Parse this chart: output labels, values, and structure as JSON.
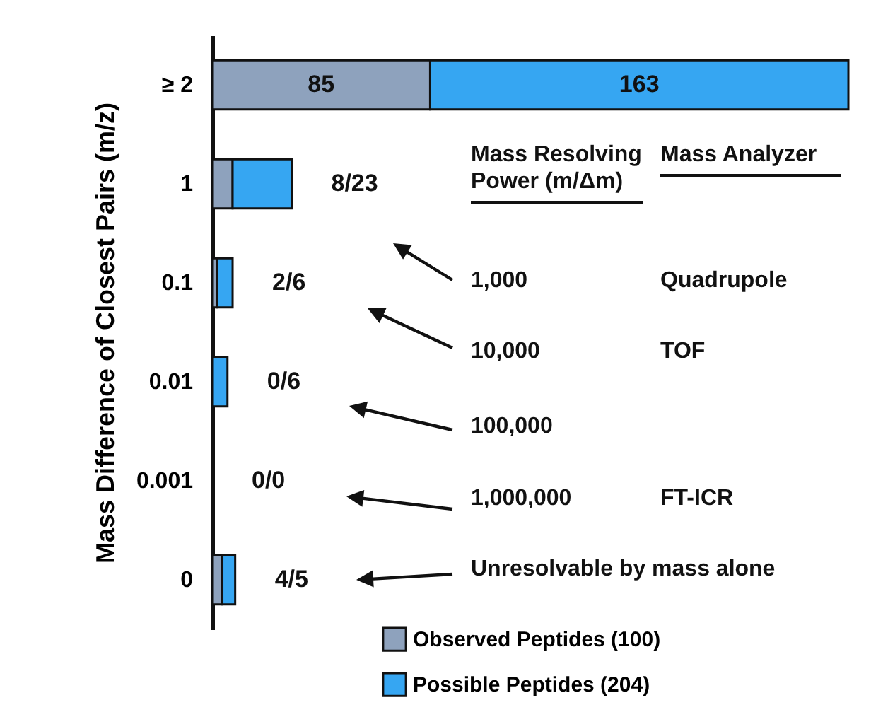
{
  "chart_data": {
    "type": "bar",
    "orientation": "horizontal",
    "stacked": true,
    "ylabel": "Mass Difference of Closest Pairs (m/z)",
    "categories": [
      "≥ 2",
      "1",
      "0.1",
      "0.01",
      "0.001",
      "0"
    ],
    "series": [
      {
        "name": "Observed Peptides (100)",
        "color": "#8ea2bd",
        "values": [
          85,
          8,
          2,
          0,
          0,
          4
        ],
        "value_labels": [
          "85",
          null,
          null,
          null,
          null,
          null
        ]
      },
      {
        "name": "Possible Peptides (204)",
        "color": "#36a6f2",
        "values": [
          163,
          23,
          6,
          6,
          0,
          5
        ],
        "value_labels": [
          "163",
          null,
          null,
          null,
          null,
          null
        ]
      }
    ],
    "legend": "bottom",
    "annotations": [
      {
        "text": "8/23",
        "x": 31,
        "y": "1"
      },
      {
        "text": "2/6",
        "x": 8,
        "y": "0.1"
      },
      {
        "text": "0/6",
        "x": 6,
        "y": "0.01"
      },
      {
        "text": "0/0",
        "x": 0,
        "y": "0.001"
      },
      {
        "text": "4/5",
        "x": 9,
        "y": "0"
      },
      "Mass Resolving Power (m/Δm)",
      "Mass Analyzer",
      "1,000",
      "Quadrupole",
      "10,000",
      "TOF",
      "100,000",
      "1,000,000",
      "FT-ICR",
      "Unresolvable by mass alone"
    ]
  }
}
